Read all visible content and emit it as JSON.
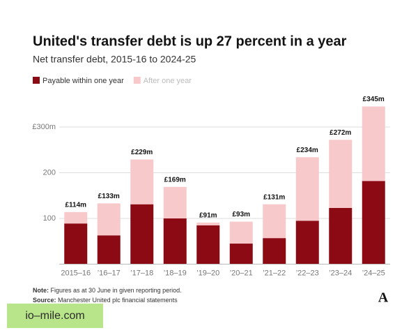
{
  "chart_data": {
    "type": "stacked_bar",
    "title": "United's transfer debt is up 27 percent in a year",
    "subtitle": "Net transfer debt, 2015-16 to 2024-25",
    "categories": [
      "2015–16",
      "’16–17",
      "’17–18",
      "’18–19",
      "’19–20",
      "’20–21",
      "’21–22",
      "’22–23",
      "’23–24",
      "’24–25"
    ],
    "series": [
      {
        "name": "Payable within one year",
        "color": "#8b0a14",
        "values": [
          89,
          63,
          131,
          100,
          85,
          45,
          57,
          95,
          123,
          182
        ]
      },
      {
        "name": "After one year",
        "color": "#f7c9cb",
        "values": [
          25,
          70,
          98,
          69,
          6,
          48,
          74,
          139,
          149,
          163
        ]
      }
    ],
    "totals": {
      "values": [
        114,
        133,
        229,
        169,
        91,
        93,
        131,
        234,
        272,
        345
      ],
      "value_labels": [
        "£114m",
        "£133m",
        "£229m",
        "£169m",
        "£91m",
        "£93m",
        "£131m",
        "£234m",
        "£272m",
        "£345m"
      ]
    },
    "ylim": [
      0,
      350
    ],
    "yticks": [
      100,
      200,
      {
        "value": 300,
        "label": "£300m"
      }
    ],
    "grid": true,
    "note": {
      "label": "Note:",
      "text": "Figures as at 30 June in given reporting period."
    },
    "source": {
      "label": "Source:",
      "text": "Manchester United plc financial statements"
    },
    "logo": "A",
    "watermark": "io–mile.com"
  }
}
